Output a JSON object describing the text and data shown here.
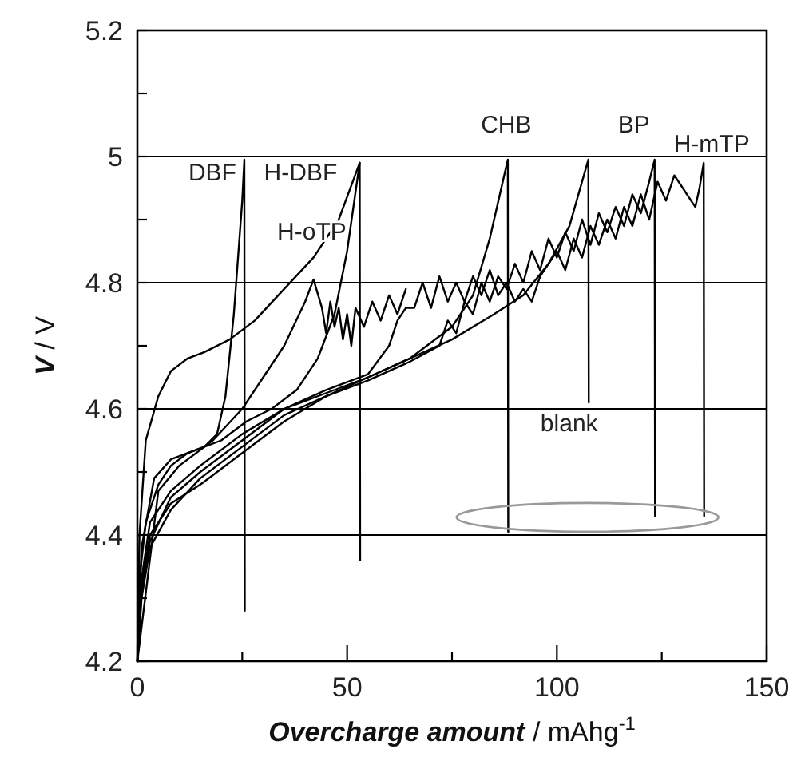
{
  "chart_data": {
    "type": "line",
    "xlabel": "Overcharge amount / mAhg$^{-1}$",
    "ylabel": "V / V",
    "xlim": [
      0,
      150
    ],
    "ylim": [
      4.2,
      5.2
    ],
    "xticks": [
      0,
      {
        "value": 25,
        "label": null
      },
      50,
      {
        "value": 75,
        "label": null
      },
      100,
      {
        "value": 125,
        "label": null
      },
      150
    ],
    "yticks": [
      4.2,
      {
        "value": 4.3,
        "label": null
      },
      4.4,
      {
        "value": 4.5,
        "label": null
      },
      4.6,
      {
        "value": 4.7,
        "label": null
      },
      4.8,
      {
        "value": 4.9,
        "label": null
      },
      5.0,
      {
        "value": 5.1,
        "label": null
      },
      5.2
    ],
    "grid": "y",
    "marker": "none",
    "line_style": "solid",
    "series": [
      {
        "name": "DBF",
        "color": "#000000",
        "x": [
          0,
          0.5,
          2,
          5,
          8,
          12,
          16,
          19,
          21,
          23,
          25,
          25.5,
          25.6
        ],
        "values": [
          4.2,
          4.33,
          4.42,
          4.48,
          4.51,
          4.53,
          4.54,
          4.56,
          4.62,
          4.75,
          4.93,
          4.995,
          4.28
        ]
      },
      {
        "name": "H-DBF",
        "color": "#000000",
        "x": [
          0,
          0.5,
          2,
          5,
          8,
          12,
          16,
          22,
          28,
          35,
          42,
          48,
          53,
          53.1
        ],
        "values": [
          4.2,
          4.4,
          4.55,
          4.62,
          4.66,
          4.68,
          4.69,
          4.71,
          4.74,
          4.79,
          4.84,
          4.9,
          4.99,
          4.36
        ]
      },
      {
        "name": "H-oTP",
        "color": "#000000",
        "x": [
          0,
          1,
          4,
          8,
          14,
          20,
          26,
          32,
          38,
          43,
          47,
          50,
          53
        ],
        "values": [
          4.2,
          4.38,
          4.49,
          4.52,
          4.535,
          4.55,
          4.58,
          4.6,
          4.63,
          4.68,
          4.75,
          4.85,
          4.99
        ]
      },
      {
        "color": "#000000",
        "x": [
          0,
          5,
          10,
          18,
          25,
          30,
          35,
          40,
          42,
          44,
          45,
          46,
          47,
          48,
          49,
          50,
          51,
          52,
          54,
          56,
          58,
          60,
          62,
          64
        ],
        "values": [
          4.2,
          4.47,
          4.51,
          4.55,
          4.6,
          4.65,
          4.7,
          4.77,
          4.805,
          4.76,
          4.72,
          4.77,
          4.73,
          4.76,
          4.71,
          4.75,
          4.7,
          4.76,
          4.73,
          4.77,
          4.74,
          4.78,
          4.75,
          4.79
        ]
      },
      {
        "name": "H-mTP",
        "color": "#000000",
        "x": [
          0,
          1,
          3,
          8,
          15,
          25,
          35,
          45,
          55,
          60,
          62,
          64,
          66,
          68,
          70,
          72,
          74,
          76,
          78,
          80,
          82,
          84,
          86,
          88,
          90,
          92,
          94,
          96,
          98,
          100,
          102,
          104,
          106,
          108,
          110,
          112,
          114,
          116,
          118,
          120,
          122,
          124,
          126,
          128,
          130,
          132,
          133,
          134,
          135,
          135.1
        ],
        "values": [
          4.2,
          4.31,
          4.39,
          4.46,
          4.5,
          4.55,
          4.6,
          4.63,
          4.655,
          4.7,
          4.74,
          4.76,
          4.76,
          4.8,
          4.76,
          4.81,
          4.77,
          4.8,
          4.77,
          4.81,
          4.78,
          4.82,
          4.78,
          4.8,
          4.77,
          4.79,
          4.77,
          4.81,
          4.83,
          4.85,
          4.82,
          4.87,
          4.84,
          4.89,
          4.86,
          4.9,
          4.87,
          4.92,
          4.89,
          4.94,
          4.9,
          4.96,
          4.93,
          4.97,
          4.95,
          4.93,
          4.92,
          4.95,
          4.99,
          4.43
        ]
      },
      {
        "name": "CHB",
        "color": "#000000",
        "x": [
          0,
          1,
          3,
          8,
          15,
          25,
          35,
          45,
          55,
          65,
          75,
          80,
          84,
          88.3,
          88.4
        ],
        "values": [
          4.2,
          4.33,
          4.42,
          4.47,
          4.51,
          4.56,
          4.6,
          4.625,
          4.65,
          4.68,
          4.73,
          4.78,
          4.87,
          4.995,
          4.405
        ]
      },
      {
        "name": "blank",
        "color": "#000000",
        "x": [
          0,
          1,
          3,
          8,
          15,
          25,
          35,
          45,
          55,
          65,
          75,
          85,
          92,
          98,
          103,
          107.5,
          107.6
        ],
        "values": [
          4.2,
          4.32,
          4.4,
          4.45,
          4.48,
          4.53,
          4.58,
          4.62,
          4.65,
          4.68,
          4.71,
          4.75,
          4.78,
          4.83,
          4.89,
          4.995,
          4.61
        ]
      },
      {
        "name": "BP",
        "color": "#000000",
        "x": [
          0,
          1,
          3,
          8,
          15,
          25,
          35,
          45,
          55,
          65,
          72,
          74,
          76,
          78,
          80,
          82,
          84,
          86,
          88,
          90,
          92,
          94,
          96,
          98,
          100,
          102,
          104,
          106,
          108,
          110,
          112,
          114,
          116,
          118,
          120,
          122,
          123.3,
          123.4
        ],
        "values": [
          4.2,
          4.3,
          4.38,
          4.44,
          4.49,
          4.54,
          4.59,
          4.62,
          4.645,
          4.675,
          4.7,
          4.74,
          4.72,
          4.77,
          4.75,
          4.8,
          4.77,
          4.81,
          4.79,
          4.83,
          4.8,
          4.85,
          4.82,
          4.87,
          4.84,
          4.88,
          4.85,
          4.9,
          4.86,
          4.91,
          4.88,
          4.92,
          4.89,
          4.94,
          4.91,
          4.96,
          4.995,
          4.43
        ]
      }
    ]
  }
}
